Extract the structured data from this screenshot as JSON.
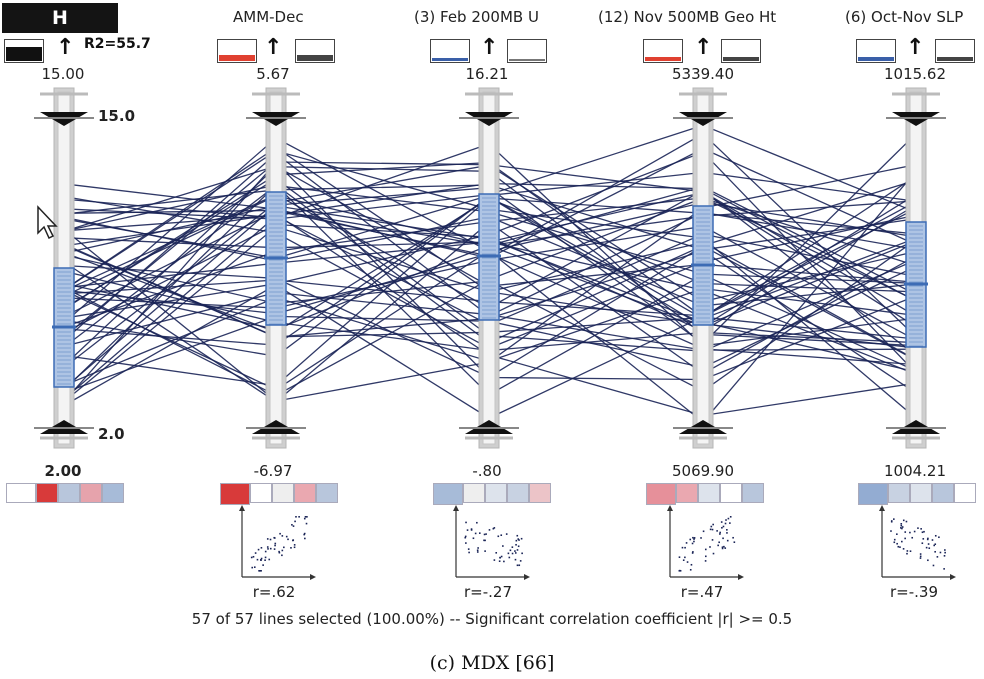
{
  "dependent": {
    "badge": "H",
    "r2_label": "R2=55.7",
    "max": "15.00",
    "min": "2.00",
    "threshold_high": "15.0",
    "threshold_low": "2.0"
  },
  "axes": [
    {
      "title": "",
      "max": "15.00",
      "min": "2.00",
      "r": "",
      "indicator_color": "#111111"
    },
    {
      "title": "AMM-Dec",
      "max": "5.67",
      "min": "-6.97",
      "r": "r=.62",
      "indicator_color": "#e04030"
    },
    {
      "title": "(3) Feb 200MB U",
      "max": "16.21",
      "min": "-.80",
      "r": "r=-.27",
      "indicator_color": "#3a5fa8"
    },
    {
      "title": "(12) Nov 500MB Geo Ht",
      "max": "5339.40",
      "min": "5069.90",
      "r": "r=.47",
      "indicator_color": "#e04030"
    },
    {
      "title": "(6) Oct-Nov SLP",
      "max": "1015.62",
      "min": "1004.21",
      "r": "r=-.39",
      "indicator_color": "#3a5fa8"
    }
  ],
  "swatches": [
    [
      "#ffffff",
      "#d83a3a",
      "#b8c6dc",
      "#e6a3ac",
      "#a7bbd8"
    ],
    [
      "#d83a3a",
      "#ffffff",
      "#eeeeee",
      "#eaa8b0",
      "#b8c6dc"
    ],
    [
      "#a7bbd8",
      "#eeeeee",
      "#dde3ec",
      "#c8d2e2",
      "#ecc4c8"
    ],
    [
      "#e6909a",
      "#eaa8b0",
      "#dde3ec",
      "#ffffff",
      "#b8c6dc"
    ],
    [
      "#93acd2",
      "#c8d2e2",
      "#dde3ec",
      "#b8c6dc",
      "#ffffff"
    ]
  ],
  "status": "57 of 57 lines selected (100.00%)  --  Significant correlation coefficient  |r| >= 0.5",
  "caption": "(c) MDX [66]",
  "colors": {
    "line": "#1a2456",
    "axis_gray": "#cfcfcf",
    "box_fill": "#aec4e4",
    "box_stroke": "#3d6cb5"
  }
}
